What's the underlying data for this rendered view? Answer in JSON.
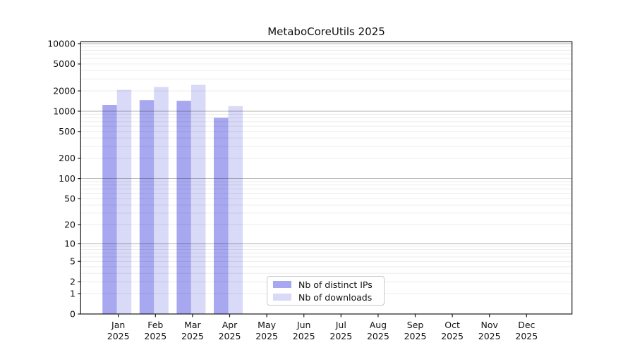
{
  "chart_data": {
    "type": "bar",
    "title": "MetaboCoreUtils 2025",
    "categories": [
      "Jan",
      "Feb",
      "Mar",
      "Apr",
      "May",
      "Jun",
      "Jul",
      "Aug",
      "Sep",
      "Oct",
      "Nov",
      "Dec"
    ],
    "category_year": "2025",
    "series": [
      {
        "name": "Nb of distinct IPs",
        "color": "#a8a8f0",
        "values": [
          1240,
          1460,
          1430,
          800,
          null,
          null,
          null,
          null,
          null,
          null,
          null,
          null
        ]
      },
      {
        "name": "Nb of downloads",
        "color": "#d9d9f8",
        "values": [
          2070,
          2280,
          2450,
          1190,
          null,
          null,
          null,
          null,
          null,
          null,
          null,
          null
        ]
      }
    ],
    "yticks": [
      0,
      1,
      2,
      5,
      10,
      20,
      50,
      100,
      200,
      500,
      1000,
      2000,
      5000,
      10000
    ],
    "ylim": [
      0,
      10000
    ],
    "yscale": "log10(1+v)",
    "grid": true,
    "legend_position": "inside-bottom-center",
    "colors": {
      "major_grid": "rgba(0,0,0,0.30)",
      "minor_grid": "rgba(0,0,0,0.085)",
      "spine": "#1a1a1a",
      "text": "#111111"
    }
  }
}
